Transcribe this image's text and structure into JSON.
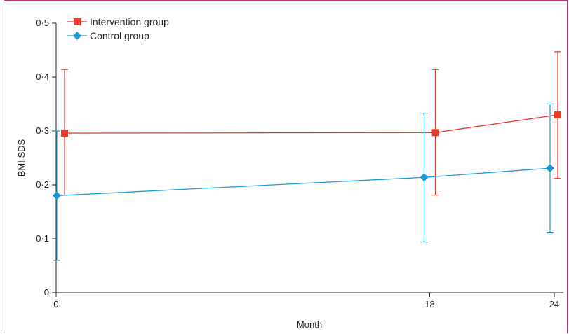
{
  "chart_data": {
    "type": "line",
    "title": "",
    "xlabel": "Month",
    "ylabel": "BMI SDS",
    "xlim": [
      0,
      24
    ],
    "ylim": [
      0,
      0.5
    ],
    "x_ticks": [
      "0",
      "18",
      "24"
    ],
    "y_ticks": [
      "0",
      "0·1",
      "0·2",
      "0·3",
      "0·4",
      "0·5"
    ],
    "grid": false,
    "legend_position": "top-left",
    "series": [
      {
        "name": "Intervention group",
        "color": "#e8392b",
        "marker": "square",
        "points": [
          {
            "x": 0,
            "y": 0.296,
            "err_low": 0.181,
            "err_high": 0.414
          },
          {
            "x": 18,
            "y": 0.297,
            "err_low": 0.181,
            "err_high": 0.414
          },
          {
            "x": 24,
            "y": 0.33,
            "err_low": 0.212,
            "err_high": 0.447
          }
        ]
      },
      {
        "name": "Control group",
        "color": "#1c9ad6",
        "marker": "diamond",
        "points": [
          {
            "x": 0,
            "y": 0.18,
            "err_low": 0.06,
            "err_high": 0.3
          },
          {
            "x": 18,
            "y": 0.214,
            "err_low": 0.094,
            "err_high": 0.333
          },
          {
            "x": 24,
            "y": 0.231,
            "err_low": 0.111,
            "err_high": 0.35
          }
        ]
      }
    ]
  }
}
